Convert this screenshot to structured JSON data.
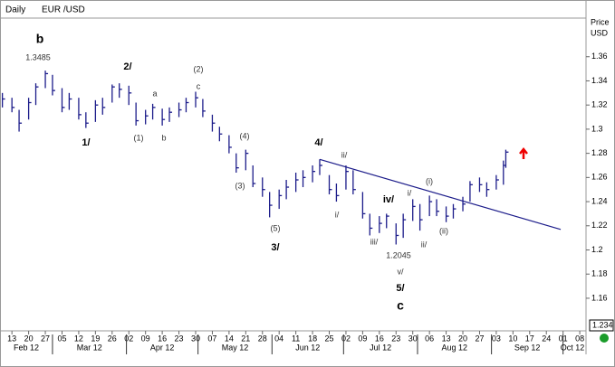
{
  "chart_data": {
    "type": "ohlc",
    "title": "Daily",
    "subtitle": "EUR /USD",
    "y_label_top": "Price",
    "y_label_bottom": "USD",
    "price_box": "1.234",
    "color": "#1c1c8a",
    "x": [
      "2012-02-09",
      "2012-02-13",
      "2012-02-16",
      "2012-02-20",
      "2012-02-23",
      "2012-02-27",
      "2012-03-01",
      "2012-03-05",
      "2012-03-08",
      "2012-03-12",
      "2012-03-15",
      "2012-03-19",
      "2012-03-22",
      "2012-03-26",
      "2012-03-29",
      "2012-04-02",
      "2012-04-05",
      "2012-04-09",
      "2012-04-12",
      "2012-04-16",
      "2012-04-19",
      "2012-04-23",
      "2012-04-26",
      "2012-04-30",
      "2012-05-03",
      "2012-05-07",
      "2012-05-10",
      "2012-05-14",
      "2012-05-17",
      "2012-05-21",
      "2012-05-24",
      "2012-05-28",
      "2012-05-31",
      "2012-06-04",
      "2012-06-07",
      "2012-06-11",
      "2012-06-14",
      "2012-06-18",
      "2012-06-21",
      "2012-06-25",
      "2012-06-28",
      "2012-07-02",
      "2012-07-05",
      "2012-07-09",
      "2012-07-12",
      "2012-07-16",
      "2012-07-19",
      "2012-07-23",
      "2012-07-26",
      "2012-07-30",
      "2012-08-02",
      "2012-08-06",
      "2012-08-09",
      "2012-08-13",
      "2012-08-16",
      "2012-08-20",
      "2012-08-23",
      "2012-08-27",
      "2012-08-30",
      "2012-09-03",
      "2012-09-06",
      "2012-09-07"
    ],
    "high": [
      1.33,
      1.326,
      1.316,
      1.326,
      1.338,
      1.3485,
      1.345,
      1.334,
      1.33,
      1.326,
      1.314,
      1.324,
      1.326,
      1.337,
      1.338,
      1.336,
      1.322,
      1.316,
      1.321,
      1.317,
      1.318,
      1.322,
      1.326,
      1.331,
      1.325,
      1.312,
      1.302,
      1.295,
      1.28,
      1.283,
      1.27,
      1.26,
      1.248,
      1.25,
      1.258,
      1.264,
      1.266,
      1.27,
      1.275,
      1.262,
      1.255,
      1.27,
      1.266,
      1.248,
      1.23,
      1.228,
      1.23,
      1.222,
      1.23,
      1.242,
      1.238,
      1.245,
      1.242,
      1.236,
      1.238,
      1.244,
      1.257,
      1.26,
      1.256,
      1.262,
      1.274,
      1.283
    ],
    "low": [
      1.318,
      1.314,
      1.298,
      1.308,
      1.32,
      1.334,
      1.328,
      1.314,
      1.316,
      1.308,
      1.301,
      1.306,
      1.312,
      1.322,
      1.326,
      1.32,
      1.303,
      1.304,
      1.308,
      1.303,
      1.306,
      1.31,
      1.314,
      1.318,
      1.31,
      1.298,
      1.29,
      1.28,
      1.264,
      1.266,
      1.252,
      1.244,
      1.227,
      1.234,
      1.242,
      1.248,
      1.252,
      1.256,
      1.262,
      1.246,
      1.24,
      1.25,
      1.246,
      1.226,
      1.212,
      1.214,
      1.218,
      1.2045,
      1.21,
      1.224,
      1.216,
      1.228,
      1.228,
      1.223,
      1.226,
      1.232,
      1.24,
      1.248,
      1.244,
      1.25,
      1.254,
      1.268
    ],
    "close": [
      1.325,
      1.318,
      1.305,
      1.322,
      1.335,
      1.346,
      1.332,
      1.318,
      1.325,
      1.312,
      1.305,
      1.32,
      1.318,
      1.335,
      1.333,
      1.33,
      1.307,
      1.311,
      1.318,
      1.308,
      1.314,
      1.316,
      1.322,
      1.326,
      1.315,
      1.305,
      1.296,
      1.285,
      1.268,
      1.28,
      1.255,
      1.25,
      1.237,
      1.245,
      1.252,
      1.258,
      1.26,
      1.265,
      1.27,
      1.25,
      1.245,
      1.265,
      1.25,
      1.23,
      1.218,
      1.222,
      1.228,
      1.212,
      1.225,
      1.236,
      1.225,
      1.24,
      1.232,
      1.228,
      1.234,
      1.238,
      1.254,
      1.254,
      1.25,
      1.258,
      1.27,
      1.281
    ],
    "trendline": {
      "x": [
        "2012-06-21",
        "2012-09-30"
      ],
      "values": [
        1.275,
        1.217
      ]
    },
    "xlim": [
      "2012-02-08",
      "2012-10-11"
    ],
    "xticks": [
      {
        "value": "2012-02-13",
        "label": "13"
      },
      {
        "value": "2012-02-20",
        "label": "20"
      },
      {
        "value": "2012-02-27",
        "label": "27"
      },
      {
        "value": "2012-03-05",
        "label": "05"
      },
      {
        "value": "2012-03-12",
        "label": "12"
      },
      {
        "value": "2012-03-19",
        "label": "19"
      },
      {
        "value": "2012-03-26",
        "label": "26"
      },
      {
        "value": "2012-04-02",
        "label": "02"
      },
      {
        "value": "2012-04-09",
        "label": "09"
      },
      {
        "value": "2012-04-16",
        "label": "16"
      },
      {
        "value": "2012-04-23",
        "label": "23"
      },
      {
        "value": "2012-04-30",
        "label": "30"
      },
      {
        "value": "2012-05-07",
        "label": "07"
      },
      {
        "value": "2012-05-14",
        "label": "14"
      },
      {
        "value": "2012-05-21",
        "label": "21"
      },
      {
        "value": "2012-05-28",
        "label": "28"
      },
      {
        "value": "2012-06-04",
        "label": "04"
      },
      {
        "value": "2012-06-11",
        "label": "11"
      },
      {
        "value": "2012-06-18",
        "label": "18"
      },
      {
        "value": "2012-06-25",
        "label": "25"
      },
      {
        "value": "2012-07-02",
        "label": "02"
      },
      {
        "value": "2012-07-09",
        "label": "09"
      },
      {
        "value": "2012-07-16",
        "label": "16"
      },
      {
        "value": "2012-07-23",
        "label": "23"
      },
      {
        "value": "2012-07-30",
        "label": "30"
      },
      {
        "value": "2012-08-06",
        "label": "06"
      },
      {
        "value": "2012-08-13",
        "label": "13"
      },
      {
        "value": "2012-08-20",
        "label": "20"
      },
      {
        "value": "2012-08-27",
        "label": "27"
      },
      {
        "value": "2012-09-03",
        "label": "03"
      },
      {
        "value": "2012-09-10",
        "label": "10"
      },
      {
        "value": "2012-09-17",
        "label": "17"
      },
      {
        "value": "2012-09-24",
        "label": "24"
      },
      {
        "value": "2012-10-01",
        "label": "01"
      },
      {
        "value": "2012-10-08",
        "label": "08"
      }
    ],
    "month_ticks": [
      {
        "value": "2012-02-01",
        "label": "Feb 12"
      },
      {
        "value": "2012-03-01",
        "label": "Mar 12"
      },
      {
        "value": "2012-04-01",
        "label": "Apr 12"
      },
      {
        "value": "2012-05-01",
        "label": "May 12"
      },
      {
        "value": "2012-06-01",
        "label": "Jun 12"
      },
      {
        "value": "2012-07-01",
        "label": "Jul 12"
      },
      {
        "value": "2012-08-01",
        "label": "Aug 12"
      },
      {
        "value": "2012-09-01",
        "label": "Sep 12"
      },
      {
        "value": "2012-10-01",
        "label": "Oct 12"
      }
    ],
    "ylim": [
      1.133,
      1.392
    ],
    "yticks": [
      1.16,
      1.18,
      1.2,
      1.22,
      1.24,
      1.26,
      1.28,
      1.3,
      1.32,
      1.34,
      1.36
    ],
    "annotations": [
      "b",
      "1.3485",
      "2/",
      "1/",
      "(2)",
      "c",
      "a",
      "(1)",
      "b",
      "(4)",
      "(3)",
      "(5)",
      "3/",
      "4/",
      "ii/",
      "i/",
      "iv/",
      "iii/",
      "1.2045",
      "v/",
      "5/",
      "c",
      "(i)",
      "i/",
      "ii/",
      "(ii)"
    ]
  }
}
